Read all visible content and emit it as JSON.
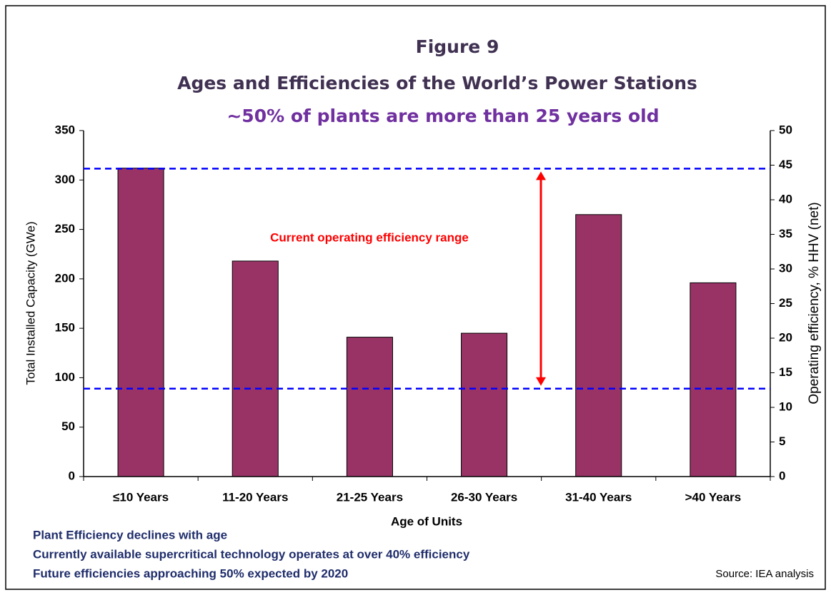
{
  "chart_data": {
    "type": "bar",
    "title": "Figure 9",
    "subtitle": "Ages and Efficiencies of the World’s Power Stations",
    "subtitle2": "~50% of plants are more than 25 years old",
    "categories": [
      "≤10 Years",
      "11-20 Years",
      "21-25 Years",
      "26-30 Years",
      "31-40 Years",
      ">40 Years"
    ],
    "values": [
      312,
      218,
      141,
      145,
      265,
      196
    ],
    "color": "#993366",
    "xlabel": "Age of Units",
    "ylabel": "Total Installed Capacity (GWe)",
    "y2label": "Operating efficiency, % HHV (net)",
    "ylim": [
      0,
      350
    ],
    "yticks": [
      0,
      50,
      100,
      150,
      200,
      250,
      300,
      350
    ],
    "y2lim": [
      0,
      50
    ],
    "y2ticks": [
      0,
      5,
      10,
      15,
      20,
      25,
      30,
      35,
      40,
      45,
      50
    ],
    "reference_lines": [
      {
        "value": 44.5,
        "axis": "y2",
        "color": "#0000ff"
      },
      {
        "value": 12.7,
        "axis": "y2",
        "color": "#0000ff"
      }
    ],
    "annotation": "Current operating efficiency range",
    "annotation_color": "#ff0000",
    "notes": [
      "Plant Efficiency declines with age",
      "Currently available supercritical technology operates at over 40% efficiency",
      "Future efficiencies approaching 50% expected by 2020"
    ],
    "source": "Source:  IEA analysis"
  }
}
